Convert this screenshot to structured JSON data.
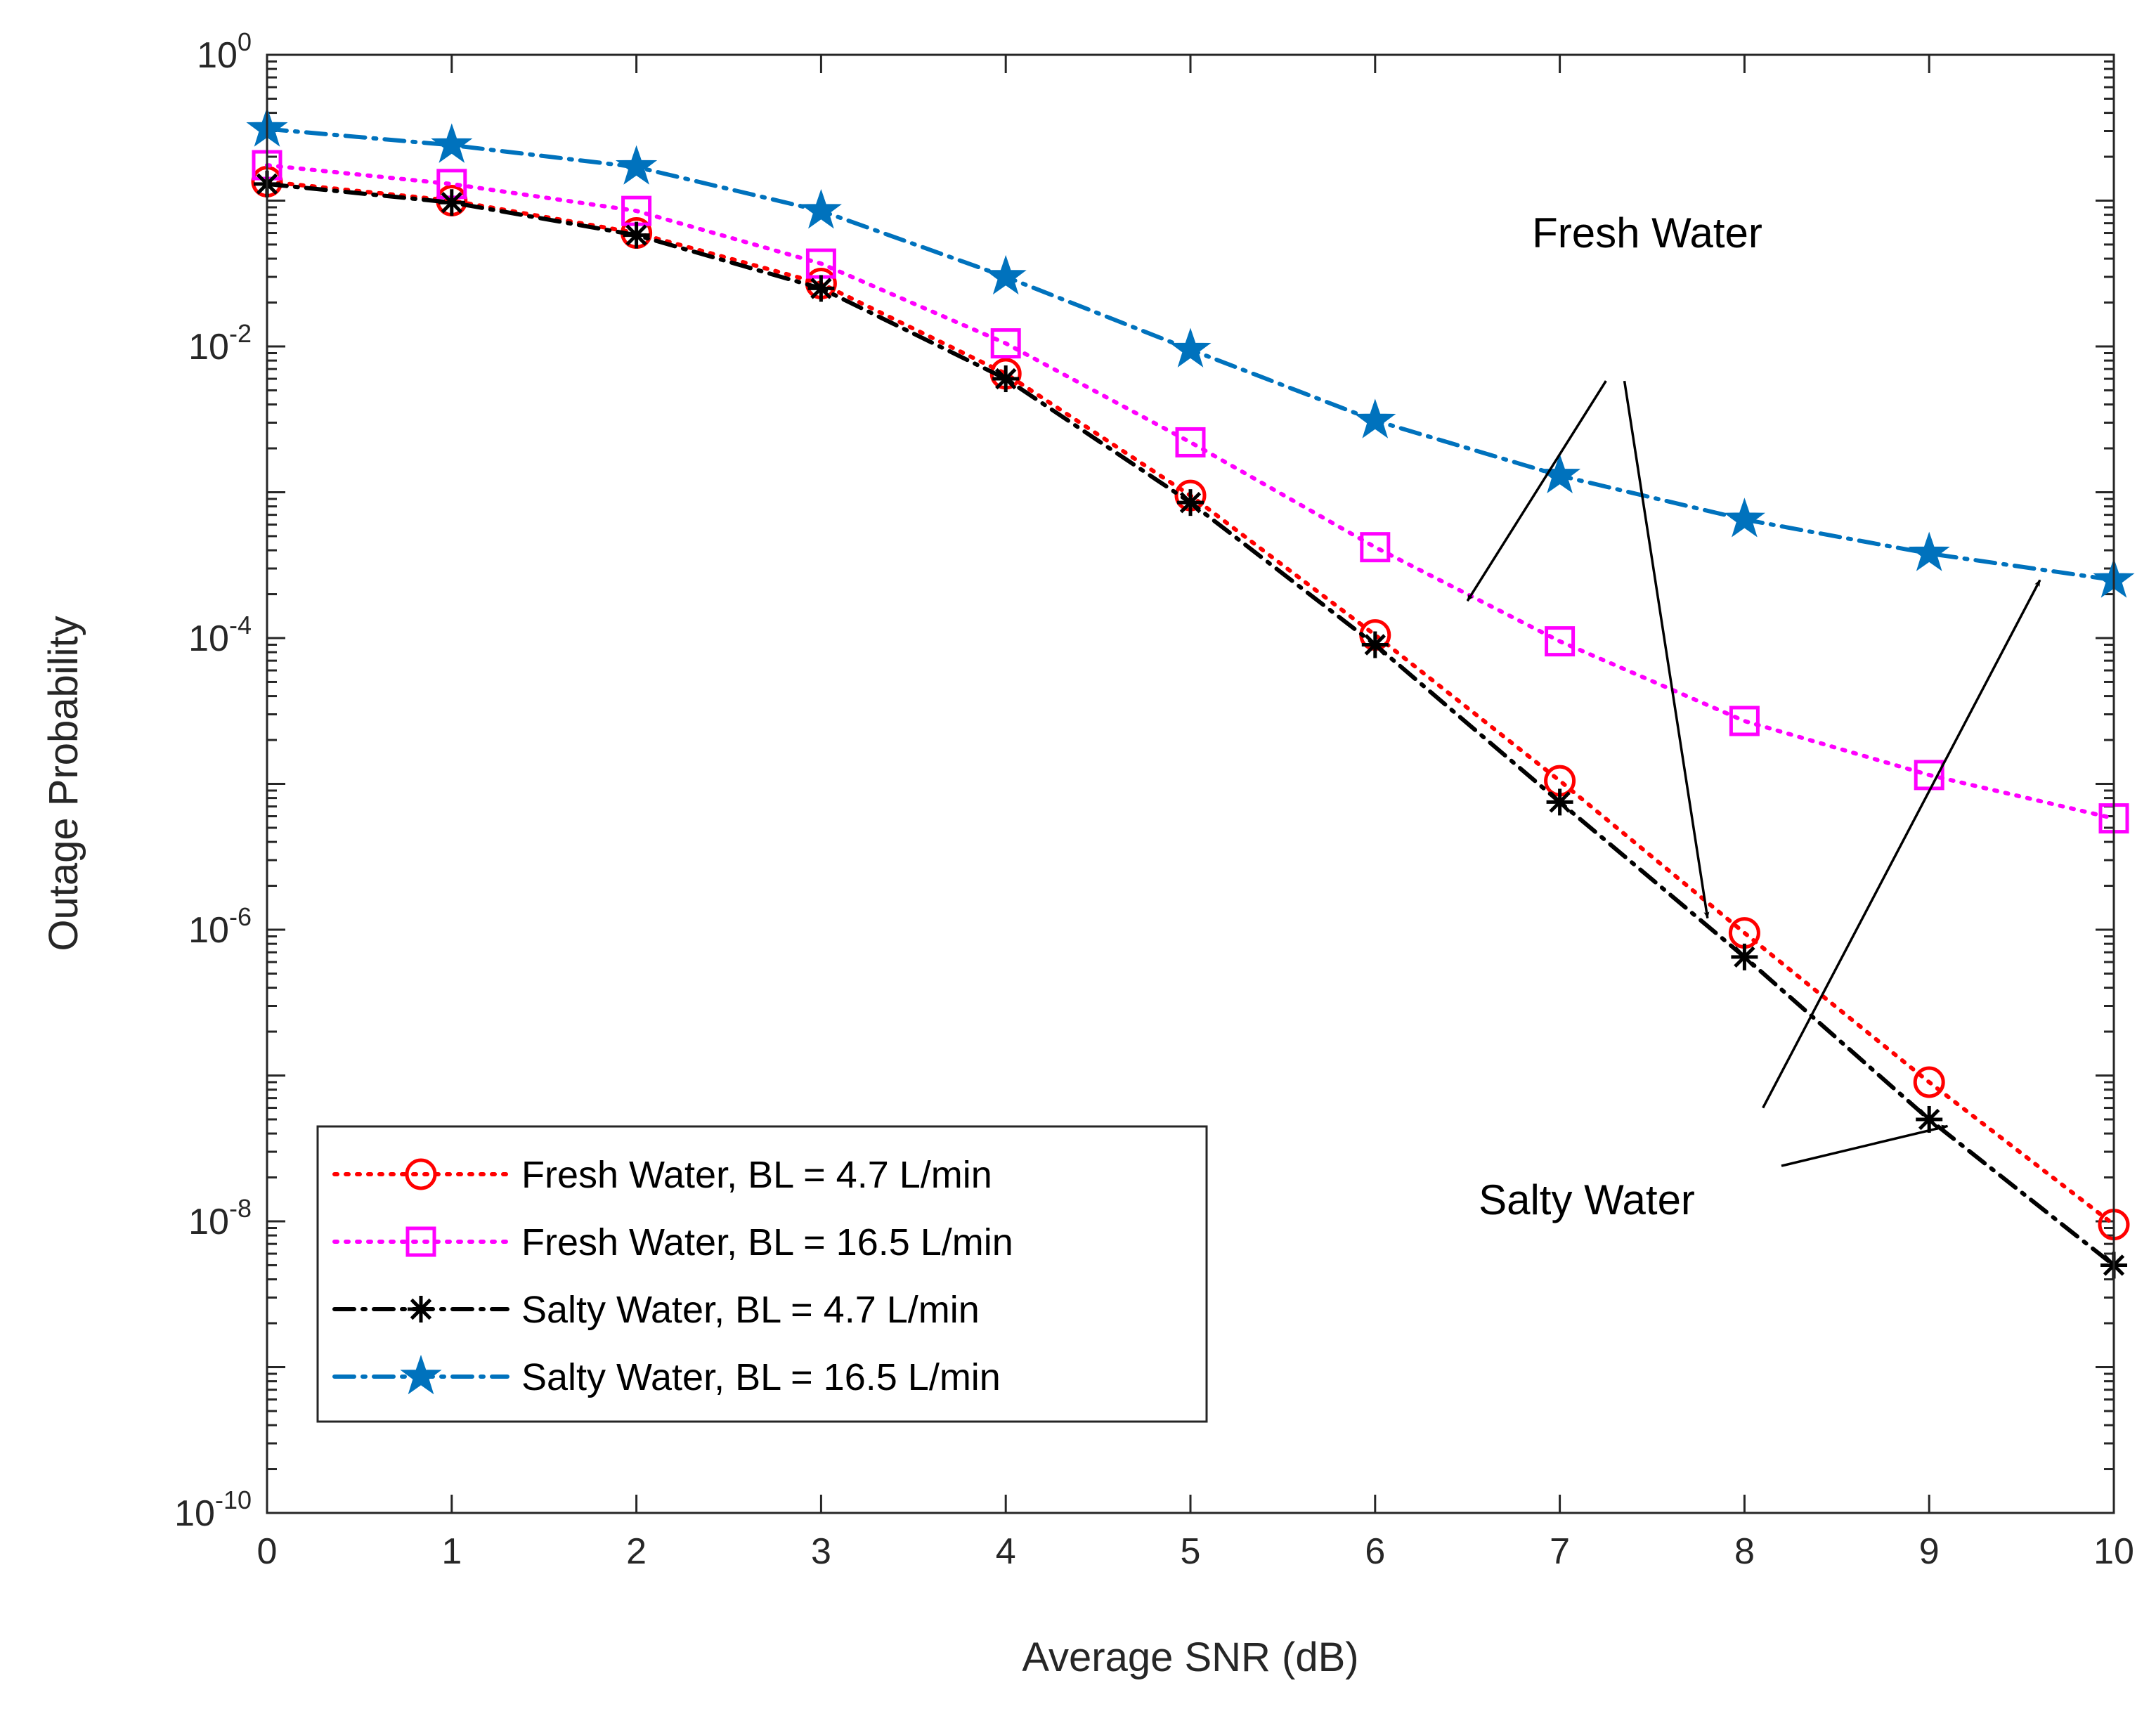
{
  "chart_data": {
    "type": "line",
    "title": "",
    "xlabel": "Average SNR (dB)",
    "ylabel": "Outage Probability",
    "xlim": [
      0,
      10
    ],
    "ylim": [
      1e-10,
      1
    ],
    "yscale": "log",
    "grid": false,
    "legend_position": "bottom-left",
    "x": [
      0,
      1,
      2,
      3,
      4,
      5,
      6,
      7,
      8,
      9,
      10
    ],
    "x_tick_labels": [
      "0",
      "1",
      "2",
      "3",
      "4",
      "5",
      "6",
      "7",
      "8",
      "9",
      "10"
    ],
    "y_ticks": [
      {
        "value": 1e-10,
        "base": "10",
        "exp": "-10"
      },
      {
        "value": 1e-08,
        "base": "10",
        "exp": "-8"
      },
      {
        "value": 1e-06,
        "base": "10",
        "exp": "-6"
      },
      {
        "value": 0.0001,
        "base": "10",
        "exp": "-4"
      },
      {
        "value": 0.01,
        "base": "10",
        "exp": "-2"
      },
      {
        "value": 1,
        "base": "10",
        "exp": "0"
      }
    ],
    "series": [
      {
        "name": "Fresh Water, BL = 4.7 L/min",
        "color": "#ff0000",
        "line_style": "dotted",
        "marker": "circle",
        "values": [
          0.135,
          0.1,
          0.06,
          0.027,
          0.0065,
          0.00095,
          0.000105,
          1.05e-05,
          9.5e-07,
          9e-08,
          9.5e-09
        ]
      },
      {
        "name": "Fresh Water, BL = 16.5 L/min",
        "color": "#ff00ff",
        "line_style": "dotted",
        "marker": "square",
        "values": [
          0.175,
          0.13,
          0.085,
          0.037,
          0.0105,
          0.0022,
          0.00042,
          9.5e-05,
          2.7e-05,
          1.15e-05,
          5.8e-06
        ]
      },
      {
        "name": "Salty Water, BL = 4.7 L/min",
        "color": "#000000",
        "line_style": "dashdot",
        "marker": "asterisk",
        "values": [
          0.13,
          0.097,
          0.058,
          0.025,
          0.006,
          0.00085,
          9e-05,
          7.5e-06,
          6.5e-07,
          5e-08,
          5e-09
        ]
      },
      {
        "name": "Salty Water, BL = 16.5 L/min",
        "color": "#0072bd",
        "line_style": "dashdot",
        "marker": "star",
        "values": [
          0.31,
          0.24,
          0.17,
          0.085,
          0.03,
          0.0095,
          0.0031,
          0.0013,
          0.00065,
          0.00038,
          0.00025
        ]
      }
    ],
    "annotations": [
      {
        "label": "Fresh Water",
        "arrows": [
          {
            "from": {
              "x": 7.25,
              "y": 0.0058
            },
            "to": {
              "x": 6.5,
              "y": 0.00018
            }
          },
          {
            "from": {
              "x": 7.35,
              "y": 0.0058
            },
            "to": {
              "x": 7.8,
              "y": 1.2e-06
            }
          }
        ]
      },
      {
        "label": "Salty Water",
        "arrows": [
          {
            "from": {
              "x": 8.1,
              "y": 6e-08
            },
            "to": {
              "x": 9.6,
              "y": 0.00025
            }
          },
          {
            "from": {
              "x": 8.2,
              "y": 2.4e-08
            },
            "to": {
              "x": 9.1,
              "y": 4.5e-08
            }
          }
        ]
      }
    ]
  }
}
